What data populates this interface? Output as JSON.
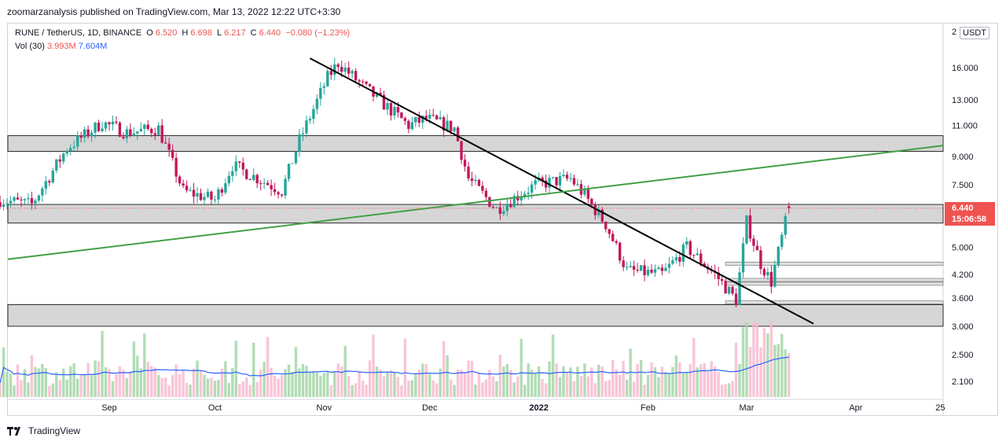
{
  "header": {
    "published": "zoomarzanalysis published on TradingView.com, Mar 13, 2022 12:22 UTC+3:30"
  },
  "legend": {
    "symbol": "RUNE / TetherUS, 1D, BINANCE",
    "open_label": "O",
    "open": "6.520",
    "high_label": "H",
    "high": "6.698",
    "low_label": "L",
    "low": "6.217",
    "close_label": "C",
    "close": "6.440",
    "change": "−0.080 (−1.23%)",
    "vol_label": "Vol (30)",
    "vol_value": "3.993M",
    "vol_ma": "7.604M"
  },
  "scale": {
    "currency": "USDT",
    "top_label": "2",
    "current_price": "6.440",
    "countdown": "15:06:58"
  },
  "footer": {
    "brand": "TradingView"
  },
  "colors": {
    "up": "#26a69a",
    "down": "#c2185b",
    "trend_down": "#000000",
    "trend_up": "#43a047",
    "zone": "#cfcfcf",
    "vol_ma": "#2962ff",
    "price_tag": "#ef5350"
  },
  "chart_data": {
    "type": "candlestick",
    "scale": "log",
    "x_axis_ticks": [
      "Sep",
      "Oct",
      "Nov",
      "Dec",
      "2022",
      "Feb",
      "Mar",
      "Apr",
      "25"
    ],
    "y_axis_ticks": [
      16.0,
      13.0,
      11.0,
      9.0,
      7.5,
      6.44,
      5.0,
      4.2,
      3.6,
      3.0,
      2.5,
      2.1
    ],
    "y_axis_tick_labels": [
      "16.000",
      "13.000",
      "11.000",
      "9.000",
      "7.500",
      "6.440",
      "5.000",
      "4.200",
      "3.600",
      "3.000",
      "2.500",
      "2.100"
    ],
    "last_price": 6.44,
    "zones": [
      {
        "low": 9.3,
        "high": 10.3
      },
      {
        "low": 5.85,
        "high": 6.6
      },
      {
        "low": 3.0,
        "high": 3.45
      }
    ],
    "small_levels": [
      4.5,
      4.05,
      3.95,
      3.5
    ],
    "trendlines": [
      {
        "name": "downtrend",
        "from": [
          "2021-10-28",
          17.0
        ],
        "to": [
          "2022-03-20",
          3.05
        ]
      },
      {
        "name": "uptrend",
        "from": [
          "2021-08-01",
          4.6
        ],
        "to": [
          "2022-05-01",
          9.8
        ]
      }
    ],
    "volume_ma_label": "Vol (30)",
    "volume_ma_value": 7.604,
    "last_volume": 3.993
  }
}
